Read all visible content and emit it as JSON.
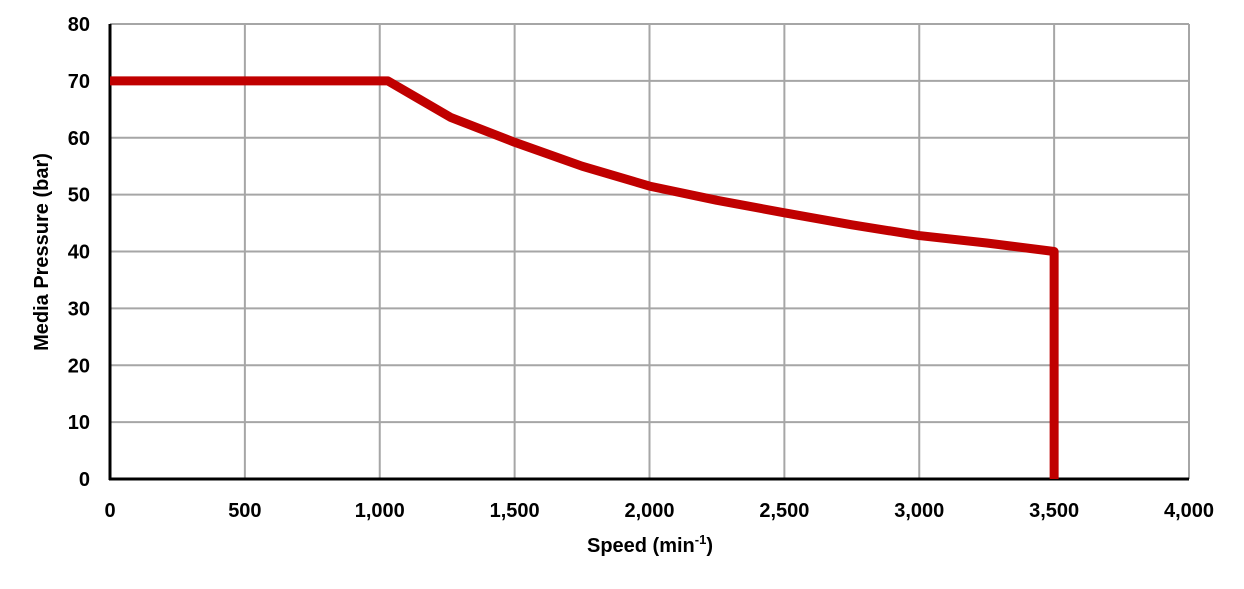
{
  "chart_data": {
    "type": "line",
    "title": "",
    "xlabel": "Speed (min",
    "xlabel_sup": "-1",
    "xlabel_end": ")",
    "ylabel": "Media Pressure (bar)",
    "xlim": [
      0,
      4000
    ],
    "ylim": [
      0,
      80
    ],
    "xticks": [
      0,
      500,
      1000,
      1500,
      2000,
      2500,
      3000,
      3500,
      4000
    ],
    "xtick_labels": [
      "0",
      "500",
      "1,000",
      "1,500",
      "2,000",
      "2,500",
      "3,000",
      "3,500",
      "4,000"
    ],
    "yticks": [
      0,
      10,
      20,
      30,
      40,
      50,
      60,
      70,
      80
    ],
    "ytick_labels": [
      "0",
      "10",
      "20",
      "30",
      "40",
      "50",
      "60",
      "70",
      "80"
    ],
    "grid": true,
    "series": [
      {
        "color": "#c00000",
        "x": [
          0,
          1030,
          1146,
          1262,
          1500,
          1750,
          2000,
          2250,
          2500,
          2750,
          3000,
          3250,
          3500,
          3500
        ],
        "y": [
          70,
          70,
          66.8,
          63.6,
          59.2,
          55,
          51.5,
          49,
          46.8,
          44.7,
          42.8,
          41.5,
          40,
          0
        ]
      }
    ],
    "grid_color": "#a6a6a6"
  }
}
